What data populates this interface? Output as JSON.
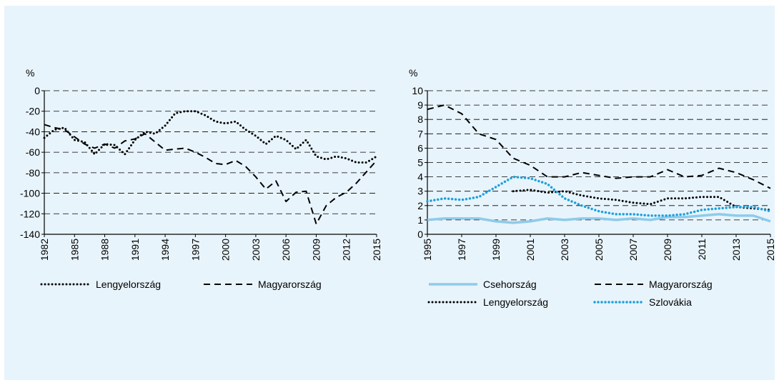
{
  "chart_data": [
    {
      "type": "line",
      "ylabel": "%",
      "x": [
        1982,
        1983,
        1984,
        1985,
        1986,
        1987,
        1988,
        1989,
        1990,
        1991,
        1992,
        1993,
        1994,
        1995,
        1996,
        1997,
        1998,
        1999,
        2000,
        2001,
        2002,
        2003,
        2004,
        2005,
        2006,
        2007,
        2008,
        2009,
        2010,
        2011,
        2012,
        2013,
        2014,
        2015
      ],
      "xlim": [
        1982,
        2015
      ],
      "xticks": [
        1982,
        1985,
        1988,
        1991,
        1994,
        1997,
        2000,
        2003,
        2006,
        2009,
        2012,
        2015
      ],
      "ylim": [
        -140,
        0
      ],
      "yticks": [
        0,
        -20,
        -40,
        -60,
        -80,
        -100,
        -120,
        -140
      ],
      "grid": true,
      "series": [
        {
          "name": "Lengyelország",
          "color": "#000000",
          "style": "dotted",
          "values": [
            -46,
            -38,
            -36,
            -48,
            -50,
            -62,
            -52,
            -53,
            -62,
            -48,
            -40,
            -42,
            -34,
            -22,
            -20,
            -20,
            -24,
            -30,
            -32,
            -30,
            -38,
            -44,
            -52,
            -44,
            -48,
            -57,
            -48,
            -64,
            -67,
            -64,
            -66,
            -70,
            -70,
            -64
          ]
        },
        {
          "name": "Magyarország",
          "color": "#000000",
          "style": "dashed",
          "values": [
            -33,
            -36,
            -38,
            -45,
            -52,
            -56,
            -52,
            -56,
            -49,
            -47,
            -42,
            -50,
            -58,
            -57,
            -56,
            -60,
            -65,
            -71,
            -72,
            -68,
            -74,
            -84,
            -96,
            -88,
            -108,
            -99,
            -98,
            -130,
            -112,
            -104,
            -99,
            -90,
            -79,
            -68
          ]
        }
      ]
    },
    {
      "type": "line",
      "ylabel": "%",
      "x": [
        1995,
        1996,
        1997,
        1998,
        1999,
        2000,
        2001,
        2002,
        2003,
        2004,
        2005,
        2006,
        2007,
        2008,
        2009,
        2010,
        2011,
        2012,
        2013,
        2014,
        2015
      ],
      "xlim": [
        1995,
        2015
      ],
      "xticks": [
        1995,
        1997,
        1999,
        2001,
        2003,
        2005,
        2007,
        2009,
        2011,
        2013,
        2015
      ],
      "ylim": [
        0,
        10
      ],
      "yticks": [
        0,
        1,
        2,
        3,
        4,
        5,
        6,
        7,
        8,
        9,
        10
      ],
      "grid": true,
      "series": [
        {
          "name": "Csehország",
          "color": "#8ecbea",
          "style": "solid",
          "values": [
            1.0,
            1.1,
            1.1,
            1.1,
            0.9,
            0.8,
            0.9,
            1.1,
            1.0,
            1.1,
            1.1,
            1.0,
            1.1,
            1.0,
            1.2,
            1.2,
            1.3,
            1.4,
            1.3,
            1.3,
            0.9
          ]
        },
        {
          "name": "Magyarország",
          "color": "#000000",
          "style": "dashed",
          "values": [
            8.7,
            9.0,
            8.4,
            7.0,
            6.6,
            5.3,
            4.8,
            4.0,
            4.0,
            4.3,
            4.1,
            3.9,
            4.0,
            4.0,
            4.5,
            4.0,
            4.1,
            4.6,
            4.3,
            3.8,
            3.2
          ]
        },
        {
          "name": "Lengyelország",
          "color": "#000000",
          "style": "dotted",
          "values": [
            null,
            null,
            null,
            null,
            null,
            3.0,
            3.1,
            2.9,
            3.0,
            2.7,
            2.5,
            2.4,
            2.2,
            2.1,
            2.5,
            2.5,
            2.6,
            2.6,
            1.9,
            1.8,
            1.7
          ]
        },
        {
          "name": "Szlovákia",
          "color": "#1ea0dc",
          "style": "dotted",
          "values": [
            2.3,
            2.5,
            2.4,
            2.6,
            3.3,
            4.0,
            3.9,
            3.5,
            2.5,
            2.0,
            1.6,
            1.4,
            1.4,
            1.3,
            1.3,
            1.4,
            1.7,
            1.8,
            1.9,
            1.9,
            1.6
          ]
        }
      ]
    }
  ]
}
